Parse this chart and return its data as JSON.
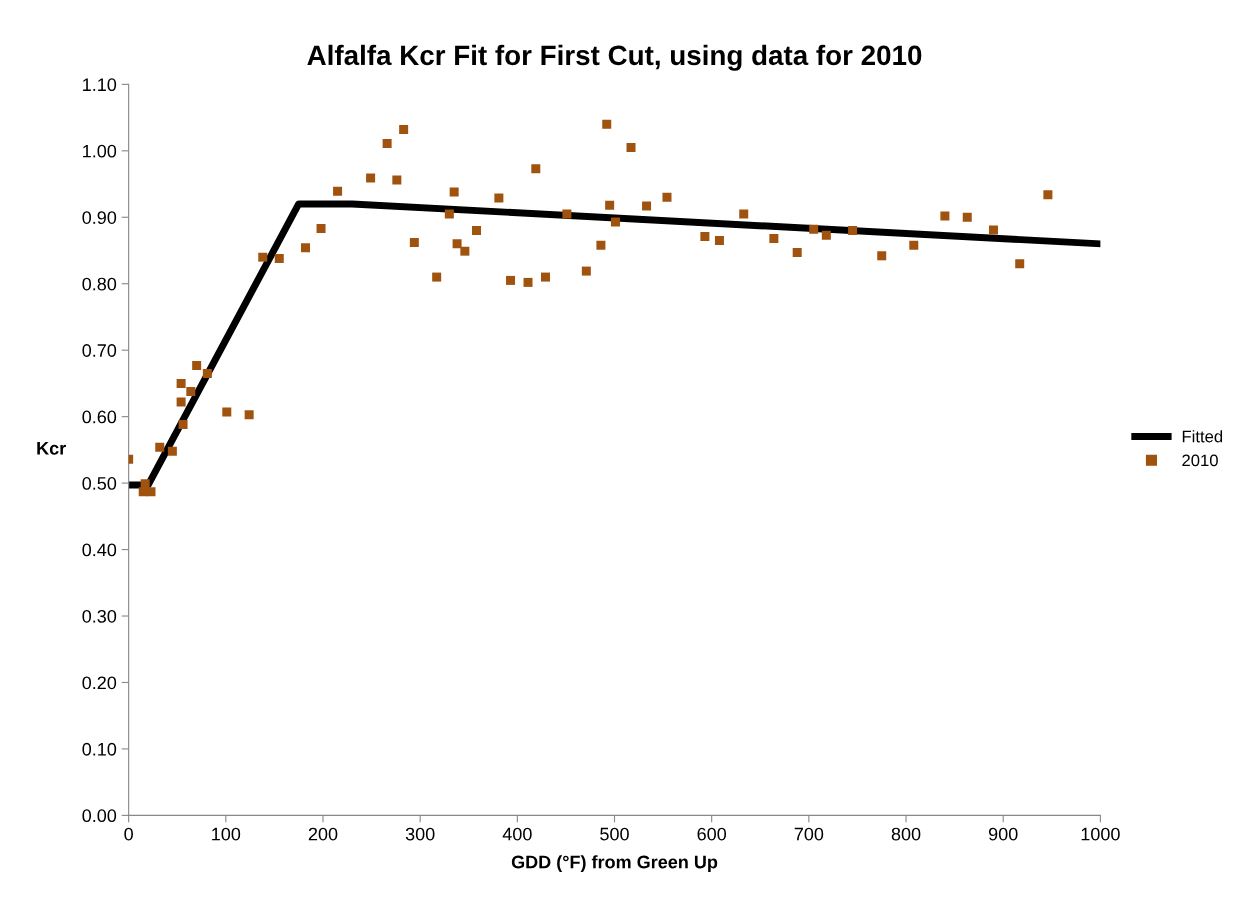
{
  "chart_data": {
    "type": "scatter",
    "title": "Alfalfa Kcr Fit for First Cut, using data for 2010",
    "xlabel": "GDD (°F) from Green Up",
    "ylabel": "Kcr",
    "xlim": [
      0,
      1000
    ],
    "xticks": [
      0,
      100,
      200,
      300,
      400,
      500,
      600,
      700,
      800,
      900,
      1000
    ],
    "ylim": [
      0,
      1.1
    ],
    "yticks": [
      {
        "value": 0,
        "label": "0.00"
      },
      {
        "value": 0.1,
        "label": "0.10"
      },
      {
        "value": 0.2,
        "label": "0.20"
      },
      {
        "value": 0.3,
        "label": "0.30"
      },
      {
        "value": 0.4,
        "label": "0.40"
      },
      {
        "value": 0.5,
        "label": "0.50"
      },
      {
        "value": 0.6,
        "label": "0.60"
      },
      {
        "value": 0.7,
        "label": "0.70"
      },
      {
        "value": 0.8,
        "label": "0.80"
      },
      {
        "value": 0.9,
        "label": "0.90"
      },
      {
        "value": 1.0,
        "label": "1.00"
      },
      {
        "value": 1.1,
        "label": "1.10"
      }
    ],
    "grid": false,
    "legend": "right",
    "series": [
      {
        "name": "Fitted",
        "type": "line",
        "color": "#000000",
        "line_style": "solid",
        "marker": "none",
        "x": [
          0,
          20,
          175,
          230,
          1000
        ],
        "values": [
          0.497,
          0.497,
          0.92,
          0.92,
          0.86
        ]
      },
      {
        "name": "2010",
        "color": "#a0520f",
        "marker": "square",
        "x": [
          0,
          17,
          15,
          23,
          32,
          45,
          54,
          54,
          56,
          64,
          70,
          81,
          101,
          124,
          138,
          155,
          182,
          198,
          215,
          249,
          266,
          276,
          283,
          294,
          317,
          330,
          335,
          338,
          346,
          358,
          381,
          393,
          411,
          419,
          429,
          451,
          471,
          486,
          492,
          495,
          501,
          517,
          533,
          554,
          593,
          608,
          633,
          664,
          688,
          705,
          718,
          745,
          775,
          808,
          840,
          863,
          890,
          917,
          946
        ],
        "values": [
          0.536,
          0.499,
          0.487,
          0.487,
          0.554,
          0.548,
          0.622,
          0.65,
          0.588,
          0.638,
          0.677,
          0.665,
          0.607,
          0.603,
          0.84,
          0.838,
          0.854,
          0.883,
          0.939,
          0.959,
          1.011,
          0.956,
          1.032,
          0.862,
          0.81,
          0.905,
          0.938,
          0.86,
          0.849,
          0.88,
          0.929,
          0.805,
          0.802,
          0.973,
          0.81,
          0.905,
          0.819,
          0.858,
          1.04,
          0.918,
          0.893,
          1.005,
          0.917,
          0.93,
          0.871,
          0.865,
          0.905,
          0.868,
          0.847,
          0.882,
          0.873,
          0.88,
          0.842,
          0.858,
          0.902,
          0.9,
          0.881,
          0.83,
          0.934
        ]
      }
    ]
  }
}
